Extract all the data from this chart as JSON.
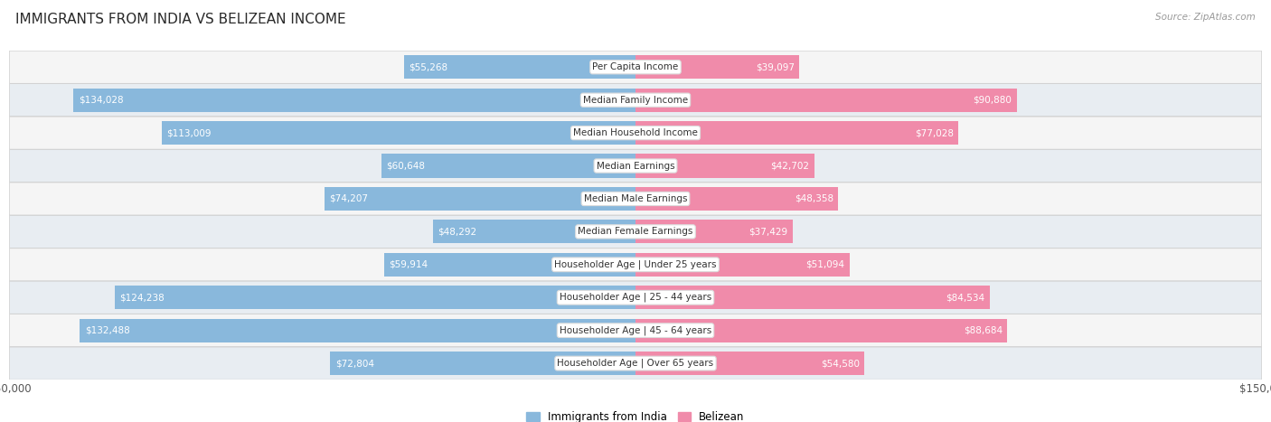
{
  "title": "IMMIGRANTS FROM INDIA VS BELIZEAN INCOME",
  "source": "Source: ZipAtlas.com",
  "categories": [
    "Per Capita Income",
    "Median Family Income",
    "Median Household Income",
    "Median Earnings",
    "Median Male Earnings",
    "Median Female Earnings",
    "Householder Age | Under 25 years",
    "Householder Age | 25 - 44 years",
    "Householder Age | 45 - 64 years",
    "Householder Age | Over 65 years"
  ],
  "india_values": [
    55268,
    134028,
    113009,
    60648,
    74207,
    48292,
    59914,
    124238,
    132488,
    72804
  ],
  "belizean_values": [
    39097,
    90880,
    77028,
    42702,
    48358,
    37429,
    51094,
    84534,
    88684,
    54580
  ],
  "india_labels": [
    "$55,268",
    "$134,028",
    "$113,009",
    "$60,648",
    "$74,207",
    "$48,292",
    "$59,914",
    "$124,238",
    "$132,488",
    "$72,804"
  ],
  "belizean_labels": [
    "$39,097",
    "$90,880",
    "$77,028",
    "$42,702",
    "$48,358",
    "$37,429",
    "$51,094",
    "$84,534",
    "$88,684",
    "$54,580"
  ],
  "india_color": "#89b8dc",
  "belizean_color": "#f08baa",
  "max_value": 150000,
  "bar_height": 0.72,
  "row_bg_even": "#e8edf2",
  "row_bg_odd": "#f5f5f5",
  "inside_label_threshold": 0.22
}
